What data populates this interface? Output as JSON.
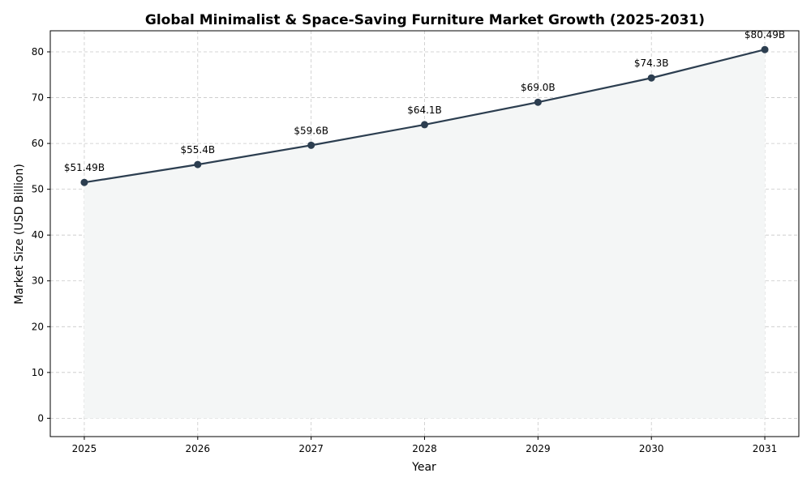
{
  "chart_data": {
    "type": "line",
    "title": "Global Minimalist & Space-Saving Furniture Market Growth (2025-2031)",
    "xlabel": "Year",
    "ylabel": "Market Size (USD Billion)",
    "x": [
      2025,
      2026,
      2027,
      2028,
      2029,
      2030,
      2031
    ],
    "values": [
      51.49,
      55.4,
      59.6,
      64.1,
      69.0,
      74.3,
      80.49
    ],
    "data_labels": [
      "$51.49B",
      "$55.4B",
      "$59.6B",
      "$64.1B",
      "$69.0B",
      "$74.3B",
      "$80.49B"
    ],
    "xticks": [
      "2025",
      "2026",
      "2027",
      "2028",
      "2029",
      "2030",
      "2031"
    ],
    "yticks": [
      "0",
      "10",
      "20",
      "30",
      "40",
      "50",
      "60",
      "70",
      "80"
    ],
    "xlim": [
      2024.7,
      2031.3
    ],
    "ylim": [
      -4.0,
      84.6
    ],
    "grid": true,
    "area_fill": true,
    "colors": {
      "line": "#2c3e50",
      "fill": "#f4f6f6"
    }
  }
}
